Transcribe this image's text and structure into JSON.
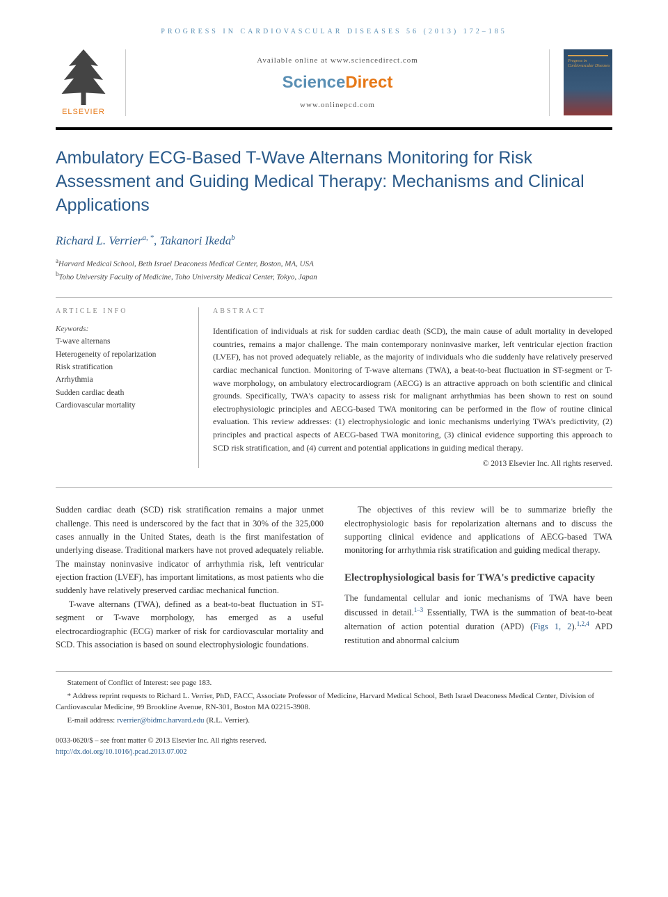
{
  "journal_header": "PROGRESS IN CARDIOVASCULAR DISEASES 56 (2013) 172–185",
  "header": {
    "available": "Available online at www.sciencedirect.com",
    "brand_a": "Science",
    "brand_b": "Direct",
    "website": "www.onlinepcd.com",
    "publisher": "ELSEVIER",
    "cover_title": "Progress in\nCardiovascular\nDiseases"
  },
  "title": "Ambulatory ECG-Based T-Wave Alternans Monitoring for Risk Assessment and Guiding Medical Therapy: Mechanisms and Clinical Applications",
  "authors_html": "Richard L. Verrier",
  "author1_sup": "a,",
  "author1_star": "*",
  "author2": ", Takanori Ikeda",
  "author2_sup": "b",
  "affiliations": {
    "a": "Harvard Medical School, Beth Israel Deaconess Medical Center, Boston, MA, USA",
    "b": "Toho University Faculty of Medicine, Toho University Medical Center, Tokyo, Japan"
  },
  "labels": {
    "article_info": "ARTICLE INFO",
    "abstract": "ABSTRACT",
    "keywords": "Keywords:"
  },
  "keywords": [
    "T-wave alternans",
    "Heterogeneity of repolarization",
    "Risk stratification",
    "Arrhythmia",
    "Sudden cardiac death",
    "Cardiovascular mortality"
  ],
  "abstract": "Identification of individuals at risk for sudden cardiac death (SCD), the main cause of adult mortality in developed countries, remains a major challenge. The main contemporary noninvasive marker, left ventricular ejection fraction (LVEF), has not proved adequately reliable, as the majority of individuals who die suddenly have relatively preserved cardiac mechanical function. Monitoring of T-wave alternans (TWA), a beat-to-beat fluctuation in ST-segment or T-wave morphology, on ambulatory electrocardiogram (AECG) is an attractive approach on both scientific and clinical grounds. Specifically, TWA's capacity to assess risk for malignant arrhythmias has been shown to rest on sound electrophysiologic principles and AECG-based TWA monitoring can be performed in the flow of routine clinical evaluation. This review addresses: (1) electrophysiologic and ionic mechanisms underlying TWA's predictivity, (2) principles and practical aspects of AECG-based TWA monitoring, (3) clinical evidence supporting this approach to SCD risk stratification, and (4) current and potential applications in guiding medical therapy.",
  "copyright": "© 2013 Elsevier Inc. All rights reserved.",
  "body": {
    "left": {
      "p1": "Sudden cardiac death (SCD) risk stratification remains a major unmet challenge. This need is underscored by the fact that in 30% of the 325,000 cases annually in the United States, death is the first manifestation of underlying disease. Traditional markers have not proved adequately reliable. The mainstay noninvasive indicator of arrhythmia risk, left ventricular ejection fraction (LVEF), has important limitations, as most patients who die suddenly have relatively preserved cardiac mechanical function.",
      "p2": "T-wave alternans (TWA), defined as a beat-to-beat fluctuation in ST-segment or T-wave morphology, has emerged as a useful electrocardiographic (ECG) marker of risk for cardiovascular mortality and SCD. This association is based on sound electrophysiologic foundations."
    },
    "right": {
      "p1": "The objectives of this review will be to summarize briefly the electrophysiologic basis for repolarization alternans and to discuss the supporting clinical evidence and applications of AECG-based TWA monitoring for arrhythmia risk stratification and guiding medical therapy.",
      "heading": "Electrophysiological basis for TWA's predictive capacity",
      "p2a": "The fundamental cellular and ionic mechanisms of TWA have been discussed in detail.",
      "ref1": "1–3",
      "p2b": " Essentially, TWA is the summation of beat-to-beat alternation of action potential duration (APD) (",
      "figs": "Figs 1, 2",
      "p2c": ").",
      "ref2": "1,2,4",
      "p2d": " APD restitution and abnormal calcium"
    }
  },
  "footer": {
    "conflict": "Statement of Conflict of Interest: see page 183.",
    "reprint": "* Address reprint requests to Richard L. Verrier, PhD, FACC, Associate Professor of Medicine, Harvard Medical School, Beth Israel Deaconess Medical Center, Division of Cardiovascular Medicine, 99 Brookline Avenue, RN-301, Boston MA 02215-3908.",
    "email_label": "E-mail address: ",
    "email": "rverrier@bidmc.harvard.edu",
    "email_author": " (R.L. Verrier)."
  },
  "bottom": {
    "line1": "0033-0620/$ – see front matter © 2013 Elsevier Inc. All rights reserved.",
    "doi": "http://dx.doi.org/10.1016/j.pcad.2013.07.002"
  },
  "colors": {
    "link": "#2a5a8a",
    "orange": "#e67817",
    "lightblue": "#5a8fb4"
  }
}
